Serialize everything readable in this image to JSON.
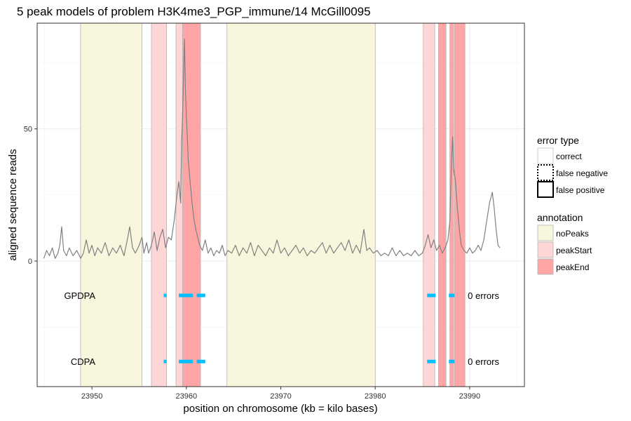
{
  "chart_data": {
    "type": "line",
    "title": "5 peak models of problem H3K4me3_PGP_immune/14 McGill0095",
    "xlabel": "position on chromosome (kb = kilo bases)",
    "ylabel": "aligned sequence reads",
    "xlim": [
      23944.2,
      23995.8
    ],
    "ylim": [
      -47.5,
      90.0
    ],
    "x_ticks": [
      {
        "value": 23950,
        "label": "23950"
      },
      {
        "value": 23960,
        "label": "23960"
      },
      {
        "value": 23970,
        "label": "23970"
      },
      {
        "value": 23980,
        "label": "23980"
      },
      {
        "value": 23990,
        "label": "23990"
      }
    ],
    "y_ticks": [
      {
        "value": 0,
        "label": "0"
      },
      {
        "value": 50,
        "label": "50"
      }
    ],
    "grid": true,
    "legend_position": "right",
    "annotations": [
      {
        "type": "noPeaks",
        "start": 23948.8,
        "end": 23955.3
      },
      {
        "type": "peakStart",
        "start": 23956.3,
        "end": 23957.9
      },
      {
        "type": "peakStart",
        "start": 23958.9,
        "end": 23959.6
      },
      {
        "type": "peakEnd",
        "start": 23959.6,
        "end": 23961.5
      },
      {
        "type": "noPeaks",
        "start": 23964.3,
        "end": 23980.0
      },
      {
        "type": "peakStart",
        "start": 23985.1,
        "end": 23986.3
      },
      {
        "type": "peakEnd",
        "start": 23986.7,
        "end": 23987.5
      },
      {
        "type": "peakEnd",
        "start": 23987.9,
        "end": 23988.3
      },
      {
        "type": "peakEnd",
        "start": 23988.4,
        "end": 23989.5
      }
    ],
    "annotation_colors": {
      "noPeaks": "#f8f7de",
      "peakStart": "#ffd6d6",
      "peakEnd": "#ffa5a5"
    },
    "coverage_color": "#808080",
    "coverage_points": [
      [
        23944.9,
        1
      ],
      [
        23945.2,
        4
      ],
      [
        23945.5,
        2
      ],
      [
        23945.8,
        5
      ],
      [
        23946.1,
        1
      ],
      [
        23946.4,
        3
      ],
      [
        23946.6,
        6
      ],
      [
        23946.8,
        13
      ],
      [
        23947.0,
        4
      ],
      [
        23947.3,
        2
      ],
      [
        23947.6,
        5
      ],
      [
        23948.0,
        2
      ],
      [
        23948.4,
        4
      ],
      [
        23948.8,
        1
      ],
      [
        23949.1,
        3
      ],
      [
        23949.4,
        8
      ],
      [
        23949.7,
        3
      ],
      [
        23950.0,
        6
      ],
      [
        23950.3,
        2
      ],
      [
        23950.6,
        5
      ],
      [
        23951.0,
        3
      ],
      [
        23951.4,
        7
      ],
      [
        23951.8,
        2
      ],
      [
        23952.2,
        5
      ],
      [
        23952.6,
        3
      ],
      [
        23953.0,
        6
      ],
      [
        23953.4,
        2
      ],
      [
        23953.8,
        9
      ],
      [
        23954.0,
        13
      ],
      [
        23954.3,
        5
      ],
      [
        23954.6,
        3
      ],
      [
        23955.0,
        6
      ],
      [
        23955.3,
        9
      ],
      [
        23955.5,
        3
      ],
      [
        23955.8,
        7
      ],
      [
        23956.0,
        3
      ],
      [
        23956.3,
        6
      ],
      [
        23956.6,
        11
      ],
      [
        23956.9,
        4
      ],
      [
        23957.2,
        9
      ],
      [
        23957.5,
        12
      ],
      [
        23957.8,
        5
      ],
      [
        23958.1,
        9
      ],
      [
        23958.4,
        8
      ],
      [
        23958.7,
        15
      ],
      [
        23959.0,
        25
      ],
      [
        23959.2,
        30
      ],
      [
        23959.4,
        22
      ],
      [
        23959.5,
        45
      ],
      [
        23959.6,
        55
      ],
      [
        23959.7,
        70
      ],
      [
        23959.8,
        84
      ],
      [
        23959.9,
        65
      ],
      [
        23960.0,
        55
      ],
      [
        23960.1,
        47
      ],
      [
        23960.2,
        38
      ],
      [
        23960.4,
        30
      ],
      [
        23960.6,
        22
      ],
      [
        23960.8,
        16
      ],
      [
        23961.0,
        12
      ],
      [
        23961.2,
        9
      ],
      [
        23961.4,
        6
      ],
      [
        23961.7,
        4
      ],
      [
        23962.0,
        8
      ],
      [
        23962.3,
        3
      ],
      [
        23962.6,
        5
      ],
      [
        23962.9,
        2
      ],
      [
        23963.2,
        4
      ],
      [
        23963.5,
        3
      ],
      [
        23963.8,
        6
      ],
      [
        23964.1,
        2
      ],
      [
        23964.4,
        4
      ],
      [
        23964.8,
        3
      ],
      [
        23965.2,
        6
      ],
      [
        23965.6,
        2
      ],
      [
        23966.0,
        5
      ],
      [
        23966.4,
        3
      ],
      [
        23966.8,
        7
      ],
      [
        23967.2,
        2
      ],
      [
        23967.6,
        6
      ],
      [
        23968.0,
        4
      ],
      [
        23968.4,
        2
      ],
      [
        23968.8,
        5
      ],
      [
        23969.2,
        3
      ],
      [
        23969.6,
        8
      ],
      [
        23970.0,
        3
      ],
      [
        23970.4,
        5
      ],
      [
        23970.8,
        2
      ],
      [
        23971.2,
        4
      ],
      [
        23971.6,
        6
      ],
      [
        23972.0,
        3
      ],
      [
        23972.4,
        5
      ],
      [
        23972.8,
        2
      ],
      [
        23973.2,
        4
      ],
      [
        23973.6,
        3
      ],
      [
        23974.0,
        5
      ],
      [
        23974.4,
        7
      ],
      [
        23974.8,
        3
      ],
      [
        23975.2,
        6
      ],
      [
        23975.6,
        3
      ],
      [
        23976.0,
        5
      ],
      [
        23976.4,
        7
      ],
      [
        23976.8,
        4
      ],
      [
        23977.2,
        8
      ],
      [
        23977.6,
        3
      ],
      [
        23978.0,
        6
      ],
      [
        23978.4,
        3
      ],
      [
        23978.8,
        12
      ],
      [
        23979.1,
        4
      ],
      [
        23979.4,
        5
      ],
      [
        23979.8,
        3
      ],
      [
        23980.2,
        4
      ],
      [
        23980.6,
        2
      ],
      [
        23981.0,
        3
      ],
      [
        23981.4,
        2
      ],
      [
        23981.8,
        5
      ],
      [
        23982.2,
        2
      ],
      [
        23982.6,
        4
      ],
      [
        23983.0,
        2
      ],
      [
        23983.4,
        3
      ],
      [
        23983.8,
        2
      ],
      [
        23984.2,
        4
      ],
      [
        23984.6,
        2
      ],
      [
        23985.0,
        3
      ],
      [
        23985.3,
        6
      ],
      [
        23985.6,
        10
      ],
      [
        23985.9,
        5
      ],
      [
        23986.2,
        8
      ],
      [
        23986.5,
        4
      ],
      [
        23986.8,
        6
      ],
      [
        23987.1,
        3
      ],
      [
        23987.4,
        5
      ],
      [
        23987.7,
        8
      ],
      [
        23987.9,
        15
      ],
      [
        23988.1,
        40
      ],
      [
        23988.2,
        47
      ],
      [
        23988.3,
        35
      ],
      [
        23988.5,
        30
      ],
      [
        23988.7,
        20
      ],
      [
        23988.9,
        12
      ],
      [
        23989.1,
        6
      ],
      [
        23989.4,
        4
      ],
      [
        23989.7,
        3
      ],
      [
        23990.0,
        5
      ],
      [
        23990.3,
        3
      ],
      [
        23990.6,
        4
      ],
      [
        23990.9,
        6
      ],
      [
        23991.2,
        4
      ],
      [
        23991.5,
        8
      ],
      [
        23991.8,
        15
      ],
      [
        23992.1,
        22
      ],
      [
        23992.4,
        26
      ],
      [
        23992.6,
        20
      ],
      [
        23992.8,
        12
      ],
      [
        23993.0,
        6
      ],
      [
        23993.2,
        5
      ]
    ],
    "models": [
      {
        "name": "GPDPA",
        "y": -13,
        "errors_label": "0 errors",
        "segments": [
          [
            23957.6,
            23957.9
          ],
          [
            23959.2,
            23960.7
          ],
          [
            23961.1,
            23962.0
          ],
          [
            23985.5,
            23986.4
          ],
          [
            23987.8,
            23988.4
          ]
        ]
      },
      {
        "name": "CDPA",
        "y": -38,
        "errors_label": "0 errors",
        "segments": [
          [
            23957.6,
            23957.9
          ],
          [
            23959.2,
            23960.7
          ],
          [
            23961.1,
            23962.0
          ],
          [
            23985.5,
            23986.4
          ],
          [
            23987.8,
            23988.4
          ]
        ]
      }
    ],
    "model_color": "#00bfff",
    "legend": {
      "error_type_title": "error type",
      "error_types": [
        {
          "label": "correct",
          "style": "thin"
        },
        {
          "label": "false negative",
          "style": "dotted"
        },
        {
          "label": "false positive",
          "style": "thick"
        }
      ],
      "annotation_title": "annotation",
      "annotations": [
        {
          "label": "noPeaks",
          "color": "#f8f7de"
        },
        {
          "label": "peakStart",
          "color": "#ffd6d6"
        },
        {
          "label": "peakEnd",
          "color": "#ffa5a5"
        }
      ]
    }
  }
}
